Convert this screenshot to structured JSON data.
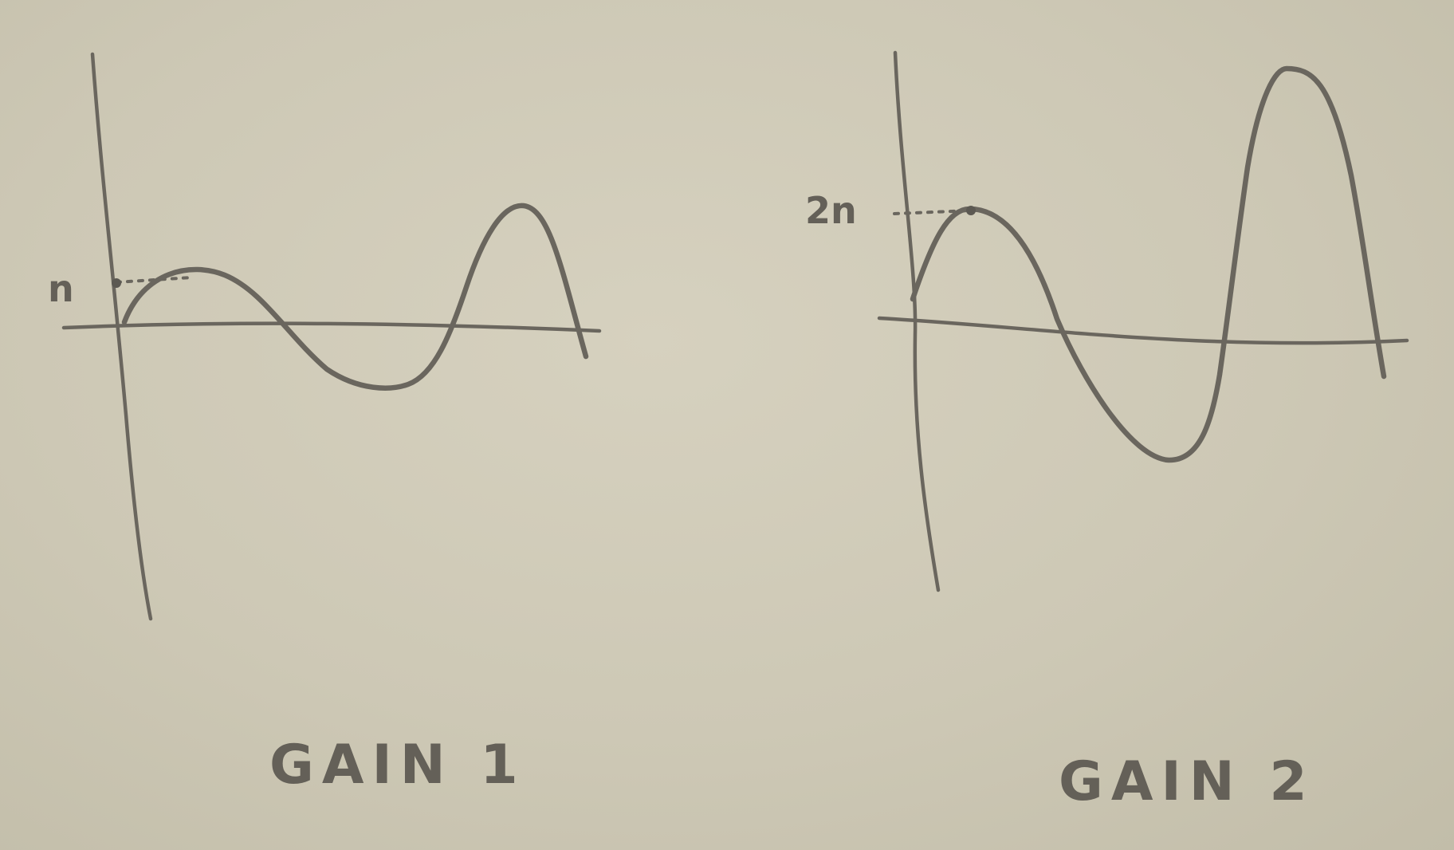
{
  "panels": [
    {
      "peak_label": "n",
      "caption": "GAIN 1"
    },
    {
      "peak_label": "2n",
      "caption": "GAIN 2"
    }
  ]
}
